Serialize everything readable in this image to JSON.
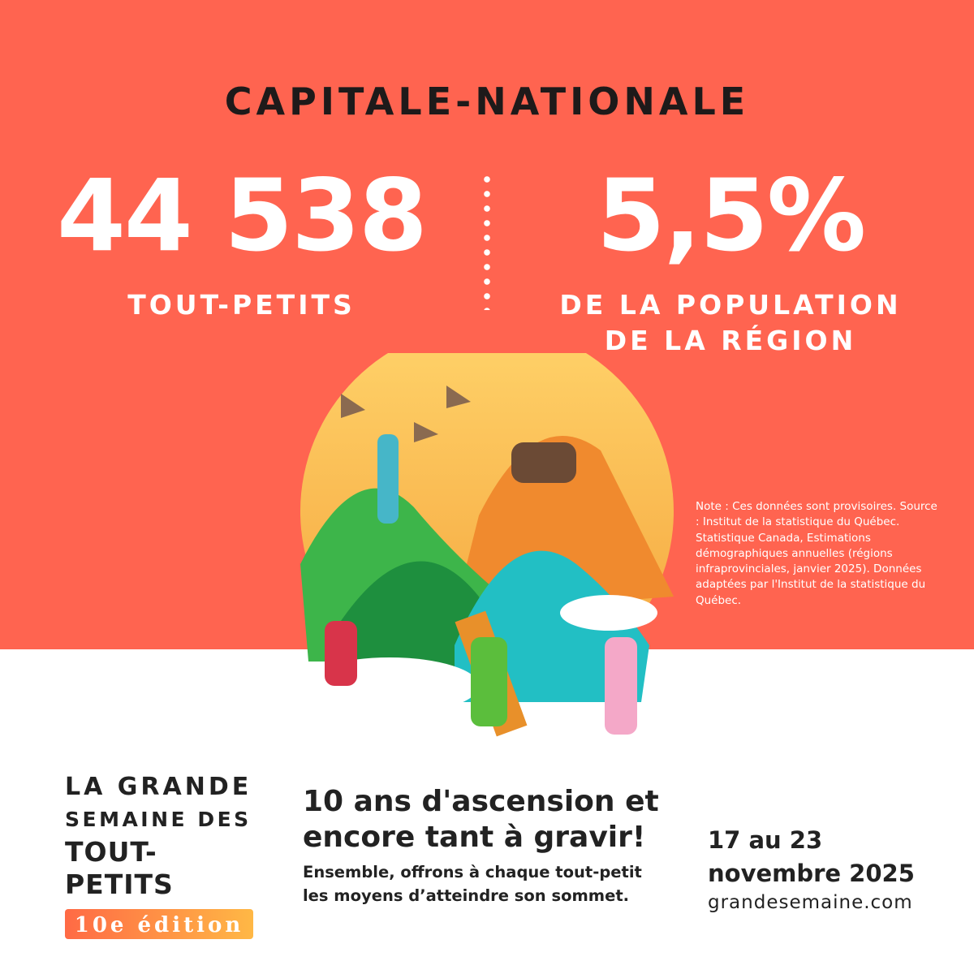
{
  "region": "CAPITALE-NATIONALE",
  "stat_count": {
    "value": "44 538",
    "label": "TOUT-PETITS"
  },
  "stat_percent": {
    "value": "5,5%",
    "label_line1": "DE LA POPULATION",
    "label_line2": "DE LA RÉGION"
  },
  "note": "Note : Ces données sont provisoires. Source : Institut de la statistique du Québec. Statistique Canada, Estimations démographiques annuelles (régions infraprovinciales, janvier 2025). Données adaptées par l'Institut de la statistique du Québec.",
  "logo": {
    "line1": "LA GRANDE",
    "line2": "SEMAINE DES",
    "line3": "TOUT-PETITS",
    "edition": "10e édition"
  },
  "slogan": {
    "headline_line1": "10 ans d'ascension et",
    "headline_line2": "encore tant à gravir!",
    "sub_line1": "Ensemble, offrons à chaque tout-petit",
    "sub_line2": "les moyens d’atteindre son sommet."
  },
  "dates": {
    "line1": "17 au 23",
    "line2": "novembre 2025"
  },
  "website": "grandesemaine.com",
  "colors": {
    "coral": "#FF6450",
    "dark": "#222222"
  }
}
